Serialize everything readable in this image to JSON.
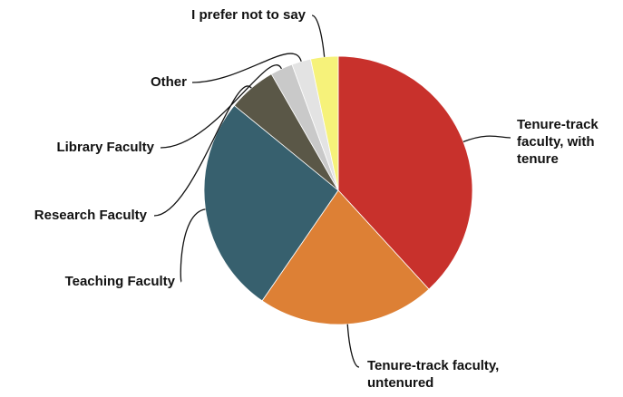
{
  "chart_data": {
    "type": "pie",
    "categories": [
      "Tenure-track faculty, with tenure",
      "Tenure-track faculty, untenured",
      "Teaching Faculty",
      "Research Faculty",
      "Library Faculty",
      "Other",
      "I prefer not to say"
    ],
    "values": [
      38.2,
      21.4,
      26.3,
      5.8,
      2.7,
      2.3,
      3.3
    ],
    "colors": [
      "#c8312c",
      "#dd8035",
      "#37606e",
      "#5a5747",
      "#c9c9c9",
      "#e3e3e3",
      "#f6f27a"
    ]
  }
}
